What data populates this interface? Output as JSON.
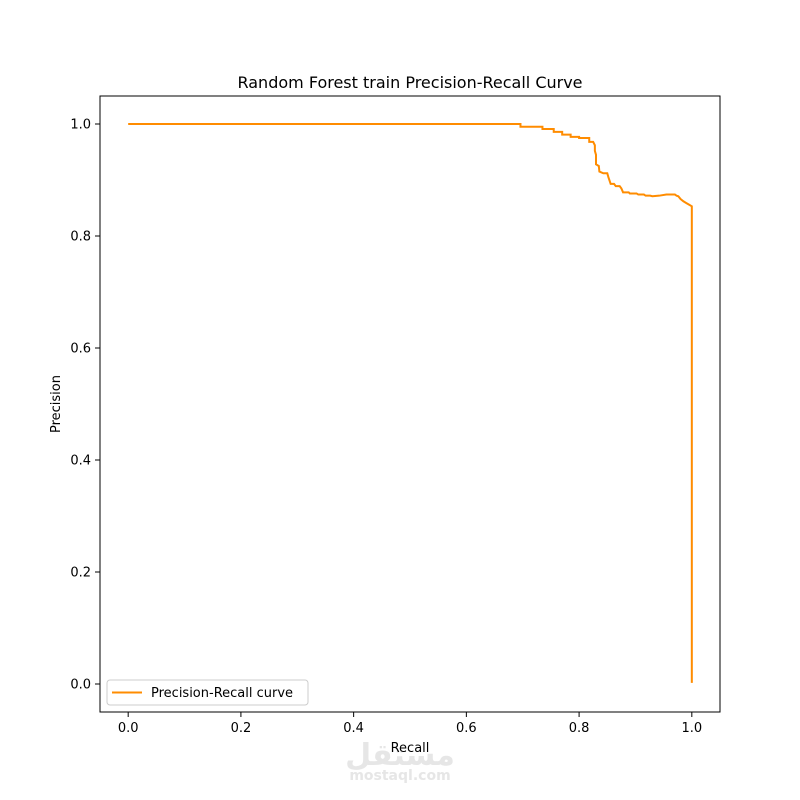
{
  "chart_data": {
    "type": "line",
    "title": "Random Forest train Precision-Recall Curve",
    "xlabel": "Recall",
    "ylabel": "Precision",
    "xlim": [
      -0.05,
      1.05
    ],
    "ylim": [
      -0.05,
      1.05
    ],
    "xticks": [
      "0.0",
      "0.2",
      "0.4",
      "0.6",
      "0.8",
      "1.0"
    ],
    "yticks": [
      "0.0",
      "0.2",
      "0.4",
      "0.6",
      "0.8",
      "1.0"
    ],
    "grid": false,
    "legend_position": "lower-left",
    "series": [
      {
        "name": "Precision-Recall curve",
        "color": "#ff8c00",
        "points": [
          [
            0.0,
            1.0
          ],
          [
            0.696,
            1.0
          ],
          [
            0.696,
            0.995
          ],
          [
            0.735,
            0.995
          ],
          [
            0.735,
            0.991
          ],
          [
            0.755,
            0.991
          ],
          [
            0.755,
            0.986
          ],
          [
            0.77,
            0.986
          ],
          [
            0.77,
            0.981
          ],
          [
            0.785,
            0.981
          ],
          [
            0.785,
            0.977
          ],
          [
            0.8,
            0.977
          ],
          [
            0.8,
            0.975
          ],
          [
            0.818,
            0.975
          ],
          [
            0.818,
            0.968
          ],
          [
            0.825,
            0.968
          ],
          [
            0.828,
            0.962
          ],
          [
            0.828,
            0.952
          ],
          [
            0.83,
            0.945
          ],
          [
            0.83,
            0.928
          ],
          [
            0.835,
            0.925
          ],
          [
            0.836,
            0.915
          ],
          [
            0.843,
            0.912
          ],
          [
            0.85,
            0.912
          ],
          [
            0.852,
            0.905
          ],
          [
            0.856,
            0.893
          ],
          [
            0.862,
            0.893
          ],
          [
            0.865,
            0.889
          ],
          [
            0.872,
            0.889
          ],
          [
            0.875,
            0.885
          ],
          [
            0.878,
            0.878
          ],
          [
            0.888,
            0.878
          ],
          [
            0.89,
            0.876
          ],
          [
            0.902,
            0.876
          ],
          [
            0.905,
            0.874
          ],
          [
            0.915,
            0.874
          ],
          [
            0.918,
            0.872
          ],
          [
            0.926,
            0.872
          ],
          [
            0.93,
            0.871
          ],
          [
            0.942,
            0.872
          ],
          [
            0.955,
            0.874
          ],
          [
            0.97,
            0.874
          ],
          [
            0.973,
            0.872
          ],
          [
            0.976,
            0.871
          ],
          [
            0.98,
            0.866
          ],
          [
            0.985,
            0.862
          ],
          [
            0.99,
            0.859
          ],
          [
            0.995,
            0.856
          ],
          [
            1.0,
            0.853
          ],
          [
            1.0,
            0.002
          ]
        ]
      }
    ]
  },
  "watermark": {
    "logo_text": "مستقل",
    "url_text": "mostaql.com"
  }
}
